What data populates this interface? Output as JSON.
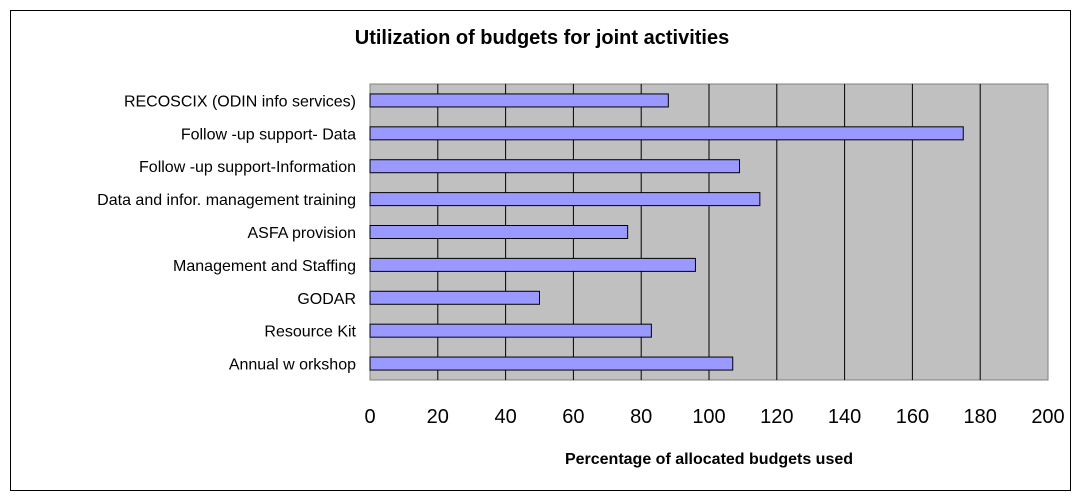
{
  "chart_data": {
    "type": "bar",
    "orientation": "horizontal",
    "title": "Utilization of budgets for joint activities",
    "xlabel": "Percentage of allocated budgets used",
    "ylabel": "",
    "categories": [
      "RECOSCIX (ODIN info services)",
      "Follow -up support- Data",
      "Follow -up support-Information",
      "Data and infor. management training",
      "ASFA provision",
      "Management and Staffing",
      "GODAR",
      "Resource Kit",
      "Annual w orkshop"
    ],
    "values": [
      88,
      175,
      109,
      115,
      76,
      96,
      50,
      83,
      107
    ],
    "xlim": [
      0,
      200
    ],
    "xticks": [
      "0",
      "20",
      "40",
      "60",
      "80",
      "100",
      "120",
      "140",
      "160",
      "180",
      "200"
    ],
    "grid": "vertical",
    "legend": "none",
    "colors": {
      "bar_fill": "#9999ff",
      "bar_stroke": "#000000",
      "plot_background": "#c0c0c0",
      "gridline": "#000000"
    }
  }
}
